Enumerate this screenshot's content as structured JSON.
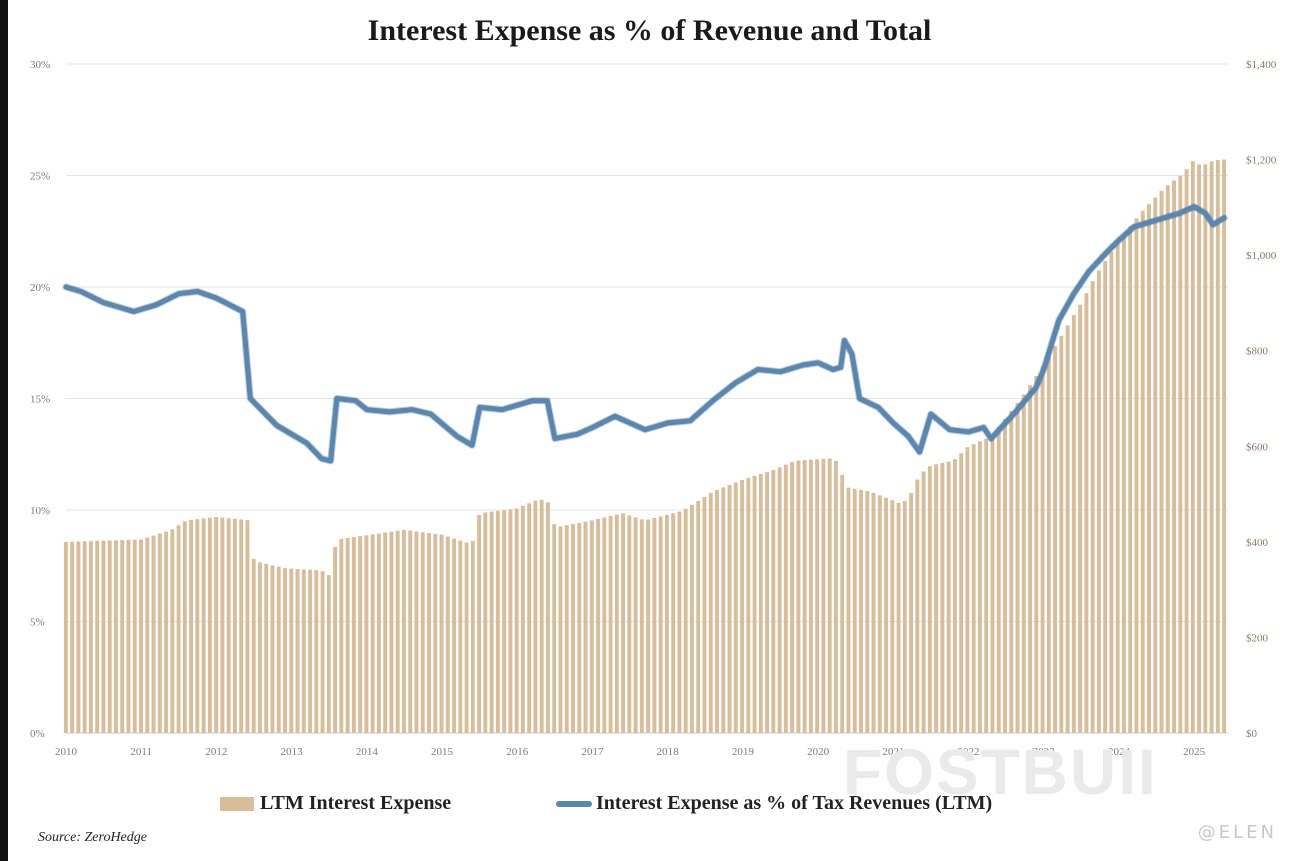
{
  "chart_data": {
    "type": "bar+line",
    "title": "Interest Expense as % of  Revenue and Total",
    "x_labels": [
      "2010",
      "2011",
      "2012",
      "2013",
      "2014",
      "2015",
      "2016",
      "2017",
      "2018",
      "2019",
      "2020",
      "2021",
      "2022",
      "2023",
      "2024",
      "2025"
    ],
    "left_axis": {
      "ylim": [
        0,
        30
      ],
      "ticks": [
        "0%",
        "5%",
        "10%",
        "15%",
        "20%",
        "25%",
        "30%"
      ]
    },
    "right_axis": {
      "ylim": [
        0,
        1400
      ],
      "ticks": [
        "$0",
        "$200",
        "$400",
        "$600",
        "$800",
        "$1,000",
        "$1,200",
        "$1,400"
      ]
    },
    "grid": true,
    "bar_series": {
      "name": "LTM Interest Expense",
      "color": "#d8bd9b",
      "anchors": [
        [
          2010.0,
          400
        ],
        [
          2011.0,
          405
        ],
        [
          2011.4,
          425
        ],
        [
          2011.6,
          445
        ],
        [
          2012.0,
          452
        ],
        [
          2012.45,
          445
        ],
        [
          2012.5,
          360
        ],
        [
          2012.9,
          345
        ],
        [
          2013.4,
          340
        ],
        [
          2013.5,
          330
        ],
        [
          2013.6,
          405
        ],
        [
          2014.5,
          425
        ],
        [
          2015.0,
          415
        ],
        [
          2015.4,
          395
        ],
        [
          2015.5,
          460
        ],
        [
          2016.0,
          470
        ],
        [
          2016.3,
          490
        ],
        [
          2016.45,
          480
        ],
        [
          2016.5,
          430
        ],
        [
          2017.0,
          445
        ],
        [
          2017.4,
          460
        ],
        [
          2017.7,
          445
        ],
        [
          2018.2,
          465
        ],
        [
          2018.6,
          505
        ],
        [
          2019.0,
          530
        ],
        [
          2019.4,
          550
        ],
        [
          2019.7,
          570
        ],
        [
          2020.2,
          575
        ],
        [
          2020.3,
          560
        ],
        [
          2020.35,
          515
        ],
        [
          2020.7,
          505
        ],
        [
          2021.1,
          480
        ],
        [
          2021.2,
          490
        ],
        [
          2021.35,
          540
        ],
        [
          2021.5,
          560
        ],
        [
          2021.8,
          570
        ],
        [
          2022.0,
          600
        ],
        [
          2022.3,
          620
        ],
        [
          2022.7,
          700
        ],
        [
          2023.0,
          770
        ],
        [
          2023.5,
          900
        ],
        [
          2023.7,
          960
        ],
        [
          2024.0,
          1030
        ],
        [
          2024.3,
          1090
        ],
        [
          2024.6,
          1140
        ],
        [
          2024.85,
          1170
        ],
        [
          2025.0,
          1200
        ],
        [
          2025.1,
          1185
        ],
        [
          2025.2,
          1195
        ],
        [
          2025.35,
          1200
        ]
      ]
    },
    "line_series": {
      "name": "Interest Expense as % of Tax Revenues (LTM)",
      "color": "#5b86ad",
      "points": [
        [
          2010.0,
          20.0
        ],
        [
          2010.2,
          19.8
        ],
        [
          2010.5,
          19.3
        ],
        [
          2010.9,
          18.9
        ],
        [
          2011.2,
          19.2
        ],
        [
          2011.5,
          19.7
        ],
        [
          2011.75,
          19.8
        ],
        [
          2012.0,
          19.5
        ],
        [
          2012.35,
          18.9
        ],
        [
          2012.45,
          15.0
        ],
        [
          2012.8,
          13.8
        ],
        [
          2013.2,
          13.0
        ],
        [
          2013.4,
          12.3
        ],
        [
          2013.52,
          12.2
        ],
        [
          2013.6,
          15.0
        ],
        [
          2013.85,
          14.9
        ],
        [
          2014.0,
          14.5
        ],
        [
          2014.3,
          14.4
        ],
        [
          2014.6,
          14.5
        ],
        [
          2014.85,
          14.3
        ],
        [
          2015.2,
          13.3
        ],
        [
          2015.4,
          12.9
        ],
        [
          2015.5,
          14.6
        ],
        [
          2015.8,
          14.5
        ],
        [
          2016.0,
          14.7
        ],
        [
          2016.2,
          14.9
        ],
        [
          2016.4,
          14.9
        ],
        [
          2016.5,
          13.2
        ],
        [
          2016.8,
          13.4
        ],
        [
          2017.0,
          13.7
        ],
        [
          2017.3,
          14.2
        ],
        [
          2017.7,
          13.6
        ],
        [
          2018.0,
          13.9
        ],
        [
          2018.3,
          14.0
        ],
        [
          2018.6,
          14.9
        ],
        [
          2018.9,
          15.7
        ],
        [
          2019.2,
          16.3
        ],
        [
          2019.5,
          16.2
        ],
        [
          2019.8,
          16.5
        ],
        [
          2020.0,
          16.6
        ],
        [
          2020.2,
          16.3
        ],
        [
          2020.3,
          16.4
        ],
        [
          2020.35,
          17.6
        ],
        [
          2020.45,
          17.0
        ],
        [
          2020.55,
          15.0
        ],
        [
          2020.8,
          14.6
        ],
        [
          2021.0,
          13.9
        ],
        [
          2021.2,
          13.3
        ],
        [
          2021.35,
          12.6
        ],
        [
          2021.5,
          14.3
        ],
        [
          2021.75,
          13.6
        ],
        [
          2022.0,
          13.5
        ],
        [
          2022.2,
          13.7
        ],
        [
          2022.3,
          13.2
        ],
        [
          2022.6,
          14.3
        ],
        [
          2022.9,
          15.5
        ],
        [
          2023.0,
          16.3
        ],
        [
          2023.2,
          18.5
        ],
        [
          2023.4,
          19.7
        ],
        [
          2023.6,
          20.7
        ],
        [
          2023.85,
          21.6
        ],
        [
          2024.0,
          22.1
        ],
        [
          2024.2,
          22.7
        ],
        [
          2024.5,
          23.0
        ],
        [
          2024.8,
          23.3
        ],
        [
          2025.0,
          23.6
        ],
        [
          2025.15,
          23.3
        ],
        [
          2025.25,
          22.8
        ],
        [
          2025.4,
          23.1
        ]
      ]
    },
    "legend": [
      "LTM Interest Expense",
      "Interest Expense as % of Tax Revenues (LTM)"
    ],
    "legend_position": "bottom-center",
    "source": "Source: ZeroHedge"
  },
  "watermark": "FOSTBUII",
  "credit": "@ELEN"
}
